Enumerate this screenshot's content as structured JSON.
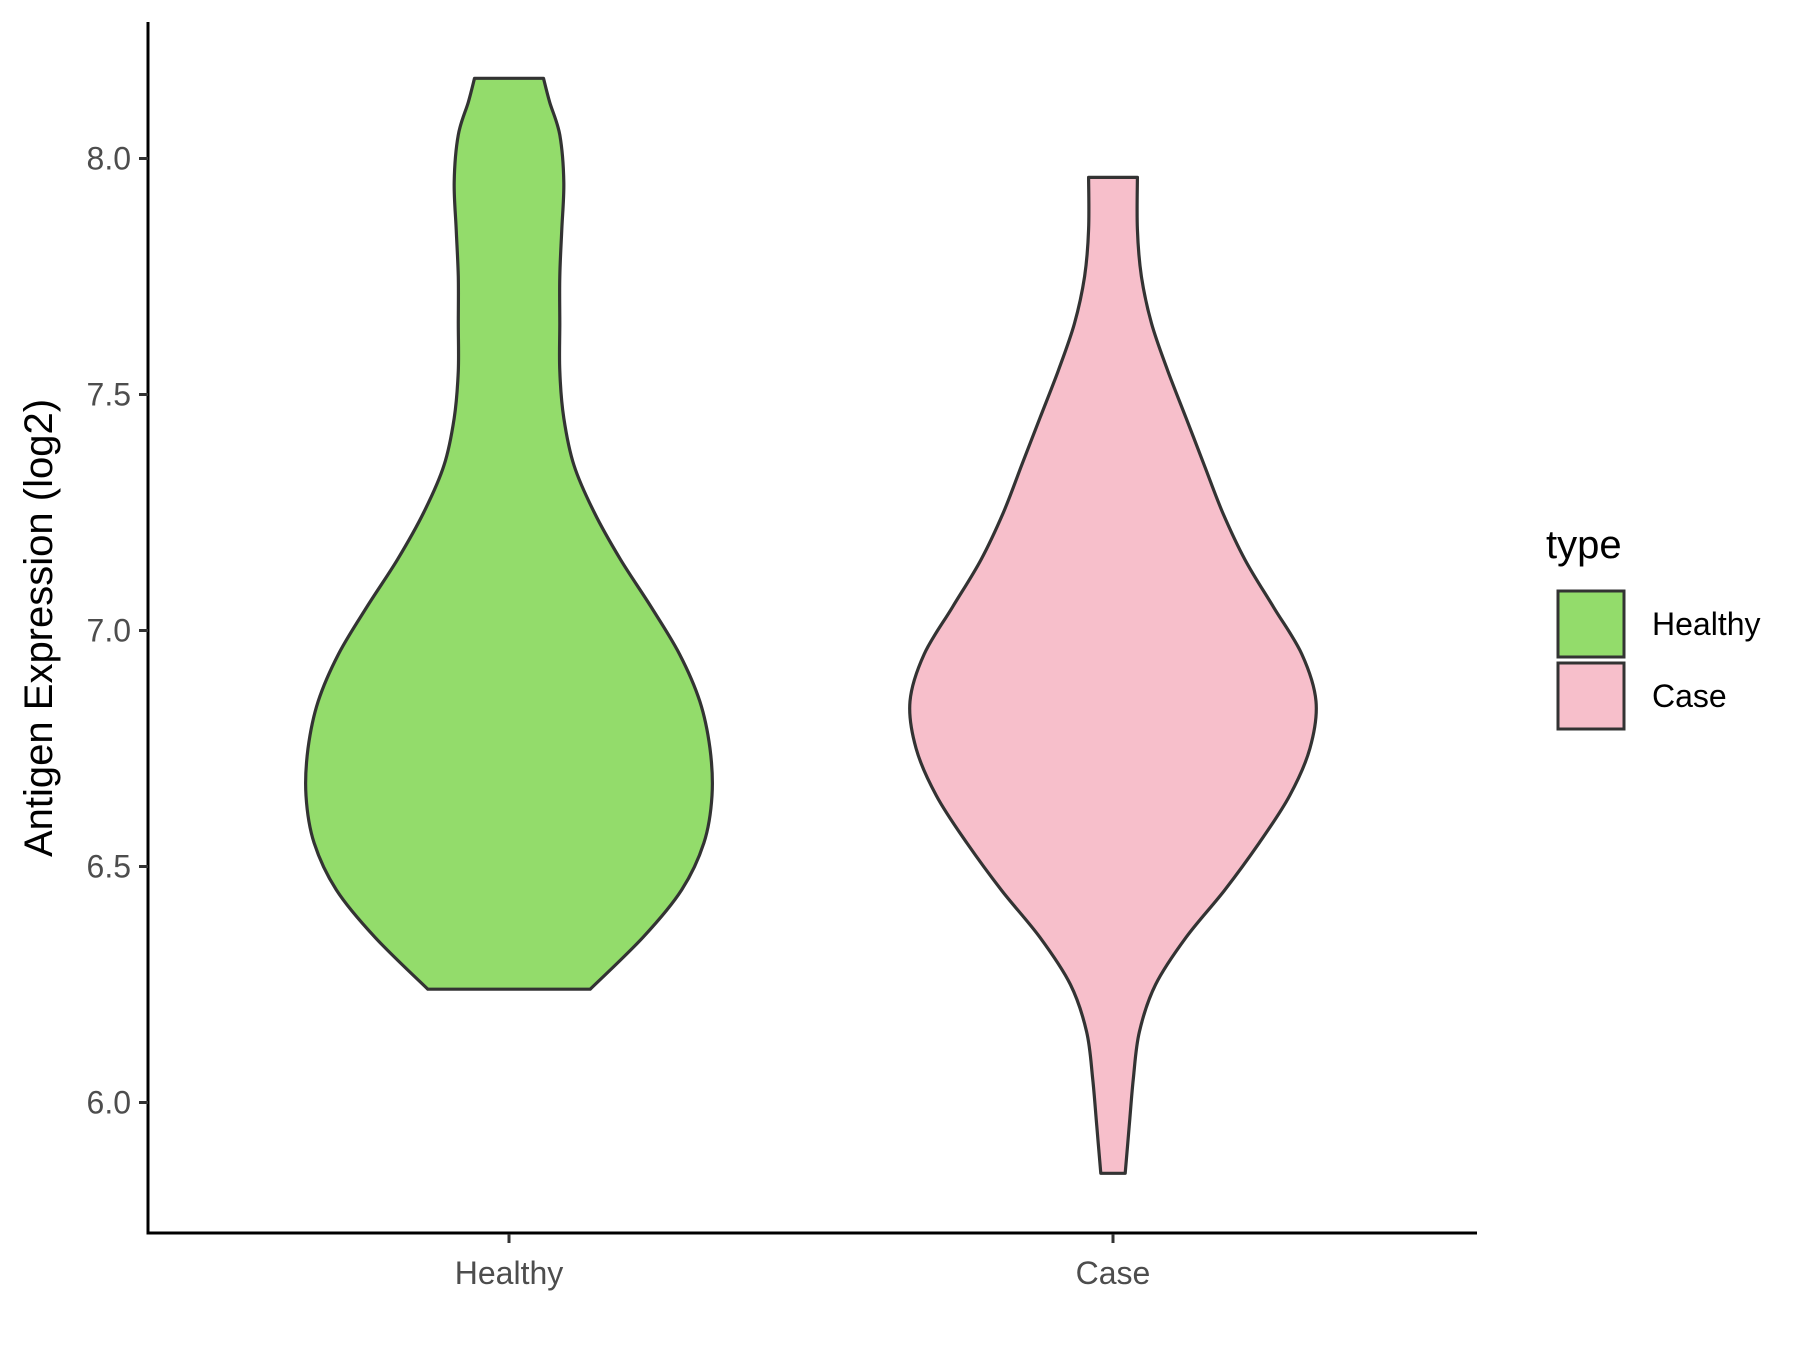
{
  "chart_data": {
    "type": "violin",
    "title": "",
    "xlabel": "",
    "ylabel": "Antigen Expression (log2)",
    "ylim": [
      5.75,
      8.3
    ],
    "yticks": [
      "6.0",
      "6.5",
      "7.0",
      "7.5",
      "8.0"
    ],
    "categories": [
      "Healthy",
      "Case"
    ],
    "grid": false,
    "legend": {
      "title": "type",
      "position": "right",
      "entries": [
        "Healthy",
        "Case"
      ]
    },
    "series": [
      {
        "name": "Healthy",
        "color": "#93DC6B",
        "min": 6.24,
        "max": 8.17,
        "density_profile": [
          [
            6.24,
            0.4
          ],
          [
            6.35,
            0.66
          ],
          [
            6.45,
            0.85
          ],
          [
            6.55,
            0.96
          ],
          [
            6.65,
            1.0
          ],
          [
            6.75,
            0.99
          ],
          [
            6.85,
            0.94
          ],
          [
            6.95,
            0.84
          ],
          [
            7.05,
            0.7
          ],
          [
            7.15,
            0.55
          ],
          [
            7.25,
            0.42
          ],
          [
            7.35,
            0.32
          ],
          [
            7.45,
            0.27
          ],
          [
            7.55,
            0.25
          ],
          [
            7.65,
            0.25
          ],
          [
            7.75,
            0.25
          ],
          [
            7.85,
            0.26
          ],
          [
            7.95,
            0.27
          ],
          [
            8.05,
            0.25
          ],
          [
            8.12,
            0.2
          ],
          [
            8.17,
            0.17
          ]
        ]
      },
      {
        "name": "Case",
        "color": "#F7BFCB",
        "min": 5.85,
        "max": 7.96,
        "density_profile": [
          [
            5.85,
            0.06
          ],
          [
            5.95,
            0.08
          ],
          [
            6.05,
            0.1
          ],
          [
            6.15,
            0.13
          ],
          [
            6.25,
            0.21
          ],
          [
            6.35,
            0.36
          ],
          [
            6.45,
            0.55
          ],
          [
            6.55,
            0.72
          ],
          [
            6.65,
            0.87
          ],
          [
            6.75,
            0.97
          ],
          [
            6.85,
            1.0
          ],
          [
            6.95,
            0.93
          ],
          [
            7.05,
            0.79
          ],
          [
            7.15,
            0.65
          ],
          [
            7.25,
            0.54
          ],
          [
            7.35,
            0.45
          ],
          [
            7.45,
            0.36
          ],
          [
            7.55,
            0.27
          ],
          [
            7.65,
            0.19
          ],
          [
            7.75,
            0.14
          ],
          [
            7.85,
            0.12
          ],
          [
            7.96,
            0.12
          ]
        ]
      }
    ]
  }
}
